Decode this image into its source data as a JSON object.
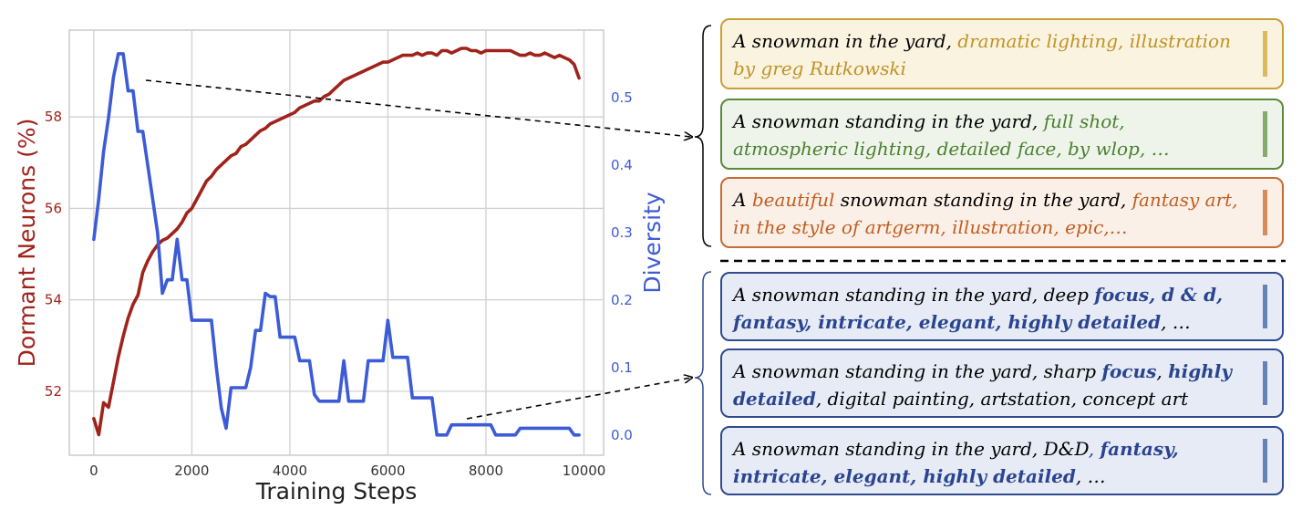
{
  "chart_data": {
    "type": "line",
    "xlabel": "Training Steps",
    "ylabel_left": "Dormant Neurons (%)",
    "ylabel_right": "Diversity",
    "xlim": [
      -500,
      10400
    ],
    "ylim_left": [
      50.6,
      59.9
    ],
    "ylim_right": [
      -0.03,
      0.6
    ],
    "x_ticks": [
      0,
      2000,
      4000,
      6000,
      8000,
      10000
    ],
    "y_ticks_left": [
      52,
      54,
      56,
      58
    ],
    "y_ticks_right": [
      0.0,
      0.1,
      0.2,
      0.3,
      0.4,
      0.5
    ],
    "grid": true,
    "series": [
      {
        "axis": "left",
        "color": "#a0231b",
        "x": [
          0,
          100,
          200,
          300,
          400,
          500,
          600,
          700,
          800,
          900,
          1000,
          1100,
          1200,
          1300,
          1400,
          1500,
          1600,
          1700,
          1800,
          1900,
          2000,
          2100,
          2200,
          2300,
          2400,
          2500,
          2600,
          2700,
          2800,
          2900,
          3000,
          3100,
          3200,
          3300,
          3400,
          3500,
          3600,
          3700,
          3800,
          3900,
          4000,
          4100,
          4200,
          4300,
          4400,
          4500,
          4600,
          4700,
          4800,
          4900,
          5000,
          5100,
          5200,
          5300,
          5400,
          5500,
          5600,
          5700,
          5800,
          5900,
          6000,
          6100,
          6200,
          6300,
          6400,
          6500,
          6600,
          6700,
          6800,
          6900,
          7000,
          7100,
          7200,
          7300,
          7400,
          7500,
          7600,
          7700,
          7800,
          7900,
          8000,
          8100,
          8200,
          8300,
          8400,
          8500,
          8600,
          8700,
          8800,
          8900,
          9000,
          9100,
          9200,
          9300,
          9400,
          9500,
          9600,
          9700,
          9800,
          9900
        ],
        "values": [
          51.4,
          51.05,
          51.75,
          51.65,
          52.2,
          52.75,
          53.2,
          53.6,
          53.9,
          54.1,
          54.6,
          54.85,
          55.05,
          55.2,
          55.3,
          55.35,
          55.45,
          55.55,
          55.7,
          55.9,
          56.0,
          56.2,
          56.4,
          56.6,
          56.7,
          56.85,
          56.95,
          57.05,
          57.15,
          57.2,
          57.35,
          57.4,
          57.5,
          57.6,
          57.7,
          57.75,
          57.85,
          57.9,
          57.95,
          58.0,
          58.05,
          58.1,
          58.2,
          58.25,
          58.3,
          58.35,
          58.35,
          58.45,
          58.5,
          58.6,
          58.7,
          58.8,
          58.85,
          58.9,
          58.95,
          59.0,
          59.05,
          59.1,
          59.15,
          59.2,
          59.2,
          59.25,
          59.3,
          59.35,
          59.35,
          59.35,
          59.4,
          59.35,
          59.4,
          59.4,
          59.35,
          59.45,
          59.45,
          59.4,
          59.45,
          59.5,
          59.5,
          59.45,
          59.45,
          59.4,
          59.45,
          59.45,
          59.45,
          59.45,
          59.45,
          59.45,
          59.4,
          59.35,
          59.35,
          59.4,
          59.35,
          59.35,
          59.4,
          59.35,
          59.3,
          59.35,
          59.3,
          59.25,
          59.15,
          58.85
        ]
      },
      {
        "axis": "right",
        "color": "#3c5bd6",
        "x": [
          0,
          100,
          200,
          300,
          400,
          500,
          600,
          700,
          800,
          900,
          1000,
          1100,
          1200,
          1300,
          1400,
          1500,
          1600,
          1700,
          1800,
          1900,
          2000,
          2100,
          2200,
          2300,
          2400,
          2500,
          2600,
          2700,
          2800,
          2900,
          3000,
          3100,
          3200,
          3300,
          3400,
          3500,
          3600,
          3700,
          3800,
          3900,
          4000,
          4100,
          4200,
          4300,
          4400,
          4500,
          4600,
          4700,
          4800,
          4900,
          5000,
          5100,
          5200,
          5300,
          5400,
          5500,
          5600,
          5700,
          5800,
          5900,
          6000,
          6100,
          6200,
          6300,
          6400,
          6500,
          6600,
          6700,
          6800,
          6900,
          7000,
          7100,
          7200,
          7300,
          7400,
          7500,
          7600,
          7700,
          7800,
          7900,
          8000,
          8100,
          8200,
          8300,
          8400,
          8500,
          8600,
          8700,
          8800,
          8900,
          9000,
          9100,
          9200,
          9300,
          9400,
          9500,
          9600,
          9700,
          9800,
          9900
        ],
        "values": [
          0.29,
          0.35,
          0.42,
          0.47,
          0.53,
          0.565,
          0.565,
          0.51,
          0.51,
          0.45,
          0.45,
          0.4,
          0.35,
          0.3,
          0.21,
          0.23,
          0.23,
          0.29,
          0.23,
          0.23,
          0.17,
          0.17,
          0.17,
          0.17,
          0.17,
          0.1,
          0.04,
          0.01,
          0.07,
          0.07,
          0.07,
          0.07,
          0.1,
          0.155,
          0.155,
          0.21,
          0.205,
          0.205,
          0.145,
          0.145,
          0.145,
          0.145,
          0.11,
          0.11,
          0.11,
          0.06,
          0.05,
          0.05,
          0.05,
          0.05,
          0.05,
          0.11,
          0.05,
          0.05,
          0.05,
          0.05,
          0.11,
          0.11,
          0.11,
          0.11,
          0.17,
          0.115,
          0.115,
          0.115,
          0.115,
          0.055,
          0.055,
          0.055,
          0.055,
          0.055,
          0.0,
          0.0,
          0.0,
          0.015,
          0.015,
          0.015,
          0.015,
          0.015,
          0.015,
          0.015,
          0.015,
          0.015,
          0.0,
          0.0,
          0.0,
          0.0,
          0.0,
          0.01,
          0.01,
          0.01,
          0.01,
          0.01,
          0.01,
          0.01,
          0.01,
          0.01,
          0.01,
          0.01,
          0.0,
          0.0
        ]
      }
    ]
  },
  "prompts_top": [
    {
      "theme": "gold",
      "border": "#c9a038",
      "bg": "#faf3e0",
      "accent": "#bf9326",
      "bar": "#dbb961",
      "segments": [
        {
          "t": "A snowman in the yard, ",
          "c": "base"
        },
        {
          "t": "dramatic lighting, illustration by greg Rutkowski",
          "c": "accent"
        }
      ]
    },
    {
      "theme": "green",
      "border": "#5a8a3a",
      "bg": "#eef4ea",
      "accent": "#4a7f2f",
      "bar": "#86aa6c",
      "segments": [
        {
          "t": "A snowman standing in the yard, ",
          "c": "base"
        },
        {
          "t": "full shot, atmospheric lighting, detailed face, by wlop, …",
          "c": "accent"
        }
      ]
    },
    {
      "theme": "orange",
      "border": "#c76a35",
      "bg": "#fbf0e7",
      "accent": "#c25d22",
      "bar": "#d88c5c",
      "segments": [
        {
          "t": "A ",
          "c": "base"
        },
        {
          "t": "beautiful",
          "c": "accent"
        },
        {
          "t": " snowman standing in the yard, ",
          "c": "base"
        },
        {
          "t": "fantasy art, in the style of artgerm, illustration, epic,…",
          "c": "accent"
        }
      ]
    }
  ],
  "prompts_bottom": [
    {
      "theme": "blue",
      "border": "#2f4a8f",
      "bg": "#e6ebf5",
      "accent": "#2a4590",
      "bar": "#6781b7",
      "segments": [
        {
          "t": "A snowman standing in the yard, deep ",
          "c": "base"
        },
        {
          "t": "focus, d & d, fantasy, intricate, elegant, highly detailed",
          "c": "accent-bold"
        },
        {
          "t": ", …",
          "c": "base"
        }
      ]
    },
    {
      "theme": "blue",
      "border": "#2f4a8f",
      "bg": "#e6ebf5",
      "accent": "#2a4590",
      "bar": "#6781b7",
      "segments": [
        {
          "t": "A snowman standing in the yard, sharp ",
          "c": "base"
        },
        {
          "t": "focus",
          "c": "accent-bold"
        },
        {
          "t": ", ",
          "c": "base"
        },
        {
          "t": "highly detailed",
          "c": "accent-bold"
        },
        {
          "t": ", digital painting, artstation, concept art",
          "c": "base"
        }
      ]
    },
    {
      "theme": "blue",
      "border": "#2f4a8f",
      "bg": "#e6ebf5",
      "accent": "#2a4590",
      "bar": "#6781b7",
      "segments": [
        {
          "t": "A snowman standing in the yard, D&D",
          "c": "base"
        },
        {
          "t": ", ",
          "c": "accent"
        },
        {
          "t": "fantasy, intricate, elegant, highly detailed",
          "c": "accent-bold"
        },
        {
          "t": ", …",
          "c": "base"
        }
      ]
    }
  ]
}
